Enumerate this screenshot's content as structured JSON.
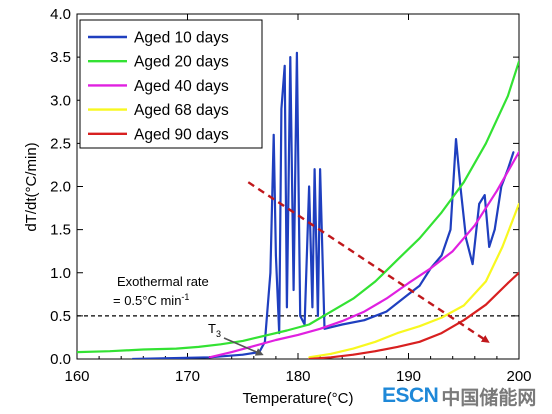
{
  "chart_data": {
    "type": "line",
    "xlabel": "Temperature(°C)",
    "ylabel": "dT/dt(°C/min)",
    "xlim": [
      160,
      200
    ],
    "ylim": [
      0,
      4.0
    ],
    "xticks": [
      "160",
      "170",
      "180",
      "190",
      "200"
    ],
    "yticks": [
      "0.0",
      "0.5",
      "1.0",
      "1.5",
      "2.0",
      "2.5",
      "3.0",
      "3.5",
      "4.0"
    ],
    "grid": false,
    "legend_position": "top-left",
    "series": [
      {
        "name": "Aged 10 days",
        "color": "#1f3fbf",
        "points": [
          [
            165,
            0.0
          ],
          [
            172,
            0.02
          ],
          [
            175,
            0.05
          ],
          [
            176.5,
            0.08
          ],
          [
            177,
            0.2
          ],
          [
            177.5,
            1.0
          ],
          [
            177.8,
            2.6
          ],
          [
            178.0,
            1.2
          ],
          [
            178.3,
            0.3
          ],
          [
            178.5,
            2.9
          ],
          [
            178.8,
            3.4
          ],
          [
            179.0,
            0.6
          ],
          [
            179.3,
            3.5
          ],
          [
            179.6,
            0.8
          ],
          [
            179.9,
            3.55
          ],
          [
            180.2,
            0.5
          ],
          [
            180.6,
            0.4
          ],
          [
            181.0,
            2.0
          ],
          [
            181.3,
            0.6
          ],
          [
            181.5,
            2.2
          ],
          [
            181.8,
            0.5
          ],
          [
            182.0,
            2.2
          ],
          [
            182.4,
            0.35
          ],
          [
            184,
            0.4
          ],
          [
            186,
            0.45
          ],
          [
            188,
            0.55
          ],
          [
            190,
            0.75
          ],
          [
            191,
            0.85
          ],
          [
            192,
            1.05
          ],
          [
            193,
            1.2
          ],
          [
            193.8,
            1.5
          ],
          [
            194.3,
            2.55
          ],
          [
            194.7,
            2.0
          ],
          [
            195.2,
            1.4
          ],
          [
            195.8,
            1.1
          ],
          [
            196.4,
            1.8
          ],
          [
            196.9,
            1.9
          ],
          [
            197.3,
            1.3
          ],
          [
            197.8,
            1.5
          ],
          [
            198.4,
            2.0
          ],
          [
            199,
            2.2
          ],
          [
            199.5,
            2.4
          ]
        ]
      },
      {
        "name": "Aged 20 days",
        "color": "#33e233",
        "points": [
          [
            160,
            0.08
          ],
          [
            163,
            0.09
          ],
          [
            166,
            0.11
          ],
          [
            169,
            0.12
          ],
          [
            171,
            0.14
          ],
          [
            173,
            0.17
          ],
          [
            175,
            0.21
          ],
          [
            177,
            0.27
          ],
          [
            179,
            0.33
          ],
          [
            181,
            0.4
          ],
          [
            183,
            0.55
          ],
          [
            185,
            0.7
          ],
          [
            187,
            0.9
          ],
          [
            189,
            1.15
          ],
          [
            191,
            1.4
          ],
          [
            193,
            1.7
          ],
          [
            195,
            2.05
          ],
          [
            197,
            2.5
          ],
          [
            199,
            3.05
          ],
          [
            200,
            3.45
          ]
        ]
      },
      {
        "name": "Aged 40 days",
        "color": "#e020e0",
        "points": [
          [
            172,
            0.02
          ],
          [
            174,
            0.08
          ],
          [
            176,
            0.15
          ],
          [
            178,
            0.22
          ],
          [
            180,
            0.28
          ],
          [
            182,
            0.35
          ],
          [
            184,
            0.44
          ],
          [
            186,
            0.55
          ],
          [
            188,
            0.7
          ],
          [
            190,
            0.88
          ],
          [
            192,
            1.05
          ],
          [
            194,
            1.25
          ],
          [
            196,
            1.55
          ],
          [
            198,
            1.95
          ],
          [
            200,
            2.4
          ]
        ]
      },
      {
        "name": "Aged 68 days",
        "color": "#f8f820",
        "points": [
          [
            181,
            0.02
          ],
          [
            183,
            0.06
          ],
          [
            185,
            0.12
          ],
          [
            187,
            0.2
          ],
          [
            189,
            0.3
          ],
          [
            191,
            0.38
          ],
          [
            193,
            0.48
          ],
          [
            195,
            0.62
          ],
          [
            197,
            0.9
          ],
          [
            198.5,
            1.3
          ],
          [
            200,
            1.8
          ]
        ]
      },
      {
        "name": "Aged 90 days",
        "color": "#d82020",
        "points": [
          [
            181,
            0.0
          ],
          [
            183,
            0.02
          ],
          [
            185,
            0.05
          ],
          [
            187,
            0.09
          ],
          [
            189,
            0.14
          ],
          [
            191,
            0.2
          ],
          [
            193,
            0.3
          ],
          [
            195,
            0.45
          ],
          [
            197,
            0.63
          ],
          [
            199,
            0.88
          ],
          [
            200,
            1.0
          ]
        ]
      }
    ],
    "annotations": {
      "threshold_value": 0.5,
      "threshold_label_line1": "Exothermal rate",
      "threshold_label_line2": "= 0.5°C min",
      "threshold_label_sup": "-1",
      "t3_label": "T",
      "t3_sub": "3",
      "t3_point": [
        177.0,
        0.02
      ],
      "trend_arrow_from": [
        175.5,
        2.05
      ],
      "trend_arrow_to": [
        197.2,
        0.2
      ],
      "trend_color": "#c0181c"
    }
  },
  "watermark": {
    "brand": "ESCN",
    "cn": "中国储能网"
  }
}
